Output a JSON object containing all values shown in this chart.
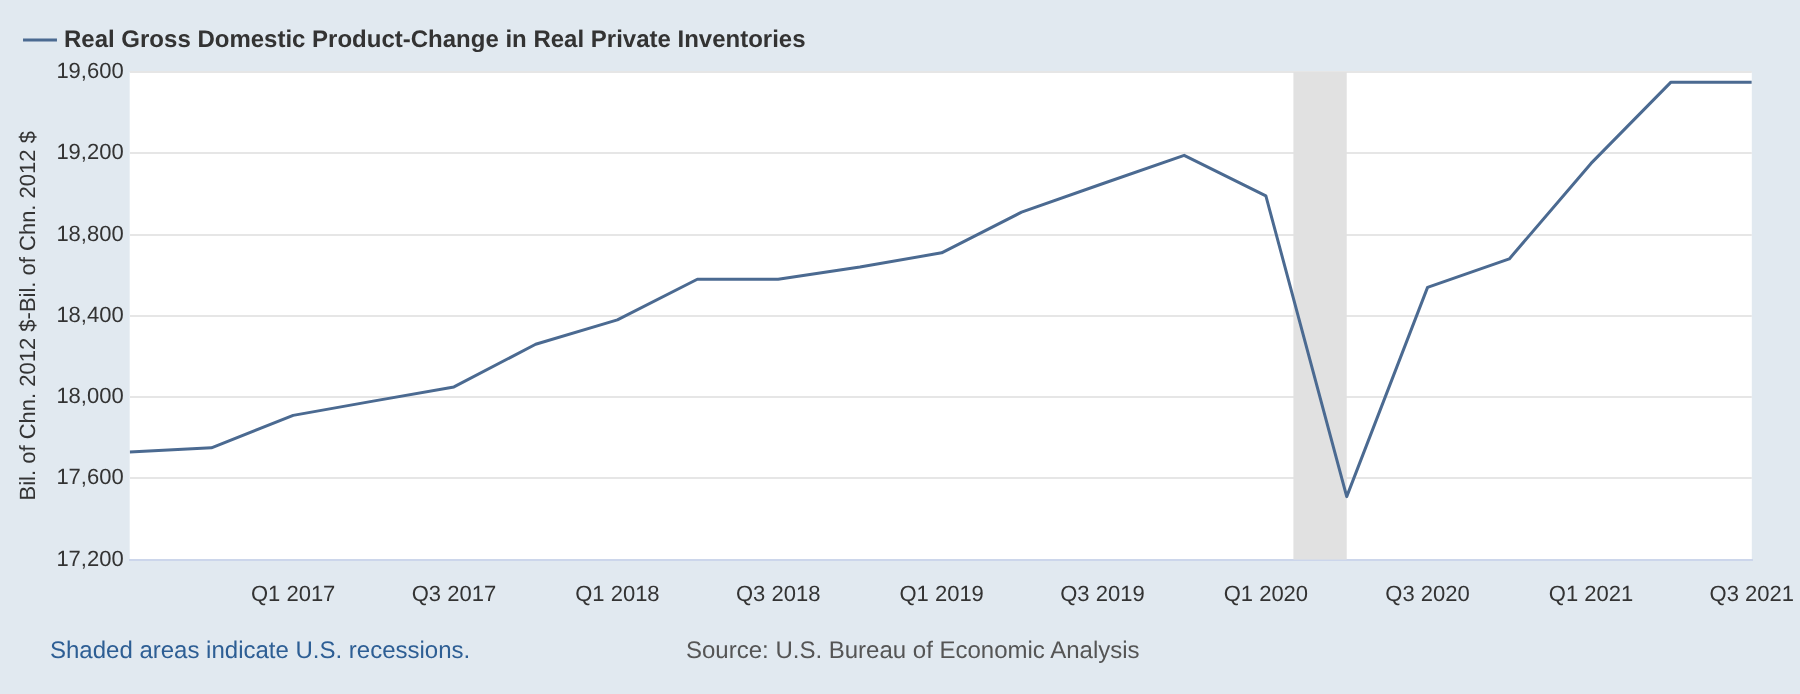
{
  "chart_data": {
    "type": "line",
    "ylabel": "Bil. of Chn. 2012 $-Bil. of Chn. 2012 $",
    "x": [
      "2016-07",
      "2016-10",
      "2017-01",
      "2017-04",
      "2017-07",
      "2017-10",
      "2018-01",
      "2018-04",
      "2018-07",
      "2018-10",
      "2019-01",
      "2019-04",
      "2019-07",
      "2019-10",
      "2020-01",
      "2020-04",
      "2020-07",
      "2020-10",
      "2021-01",
      "2021-04",
      "2021-07"
    ],
    "series": [
      {
        "name": "Real Gross Domestic Product-Change in Real Private Inventories",
        "color": "#4b6a91",
        "values": [
          17730,
          17750,
          17910,
          17980,
          18050,
          18260,
          18380,
          18580,
          18580,
          18640,
          18710,
          18910,
          19050,
          19190,
          18990,
          17510,
          18540,
          18680,
          19150,
          19550,
          19550
        ]
      }
    ],
    "xlim": [
      "2016-07",
      "2021-07"
    ],
    "xticks": [
      {
        "value": "2017-01",
        "label": "Q1 2017"
      },
      {
        "value": "2017-07",
        "label": "Q3 2017"
      },
      {
        "value": "2018-01",
        "label": "Q1 2018"
      },
      {
        "value": "2018-07",
        "label": "Q3 2018"
      },
      {
        "value": "2019-01",
        "label": "Q1 2019"
      },
      {
        "value": "2019-07",
        "label": "Q3 2019"
      },
      {
        "value": "2020-01",
        "label": "Q1 2020"
      },
      {
        "value": "2020-07",
        "label": "Q3 2020"
      },
      {
        "value": "2021-01",
        "label": "Q1 2021"
      },
      {
        "value": "2021-07",
        "label": "Q3 2021"
      }
    ],
    "ylim": [
      17200,
      19600
    ],
    "yticks": [
      {
        "value": 17200,
        "label": "17,200"
      },
      {
        "value": 17600,
        "label": "17,600"
      },
      {
        "value": 18000,
        "label": "18,000"
      },
      {
        "value": 18400,
        "label": "18,400"
      },
      {
        "value": 18800,
        "label": "18,800"
      },
      {
        "value": 19200,
        "label": "19,200"
      },
      {
        "value": 19600,
        "label": "19,600"
      }
    ],
    "bands": [
      {
        "axis": "x",
        "from": "2020-02",
        "to": "2020-04",
        "color": "#e1e1e1"
      }
    ],
    "grid": "y",
    "legend": "top left",
    "marker": "none",
    "line_style": "solid",
    "annotations": [
      "Shaded areas indicate U.S. recessions.",
      "Source: U.S. Bureau of Economic Analysis"
    ]
  }
}
